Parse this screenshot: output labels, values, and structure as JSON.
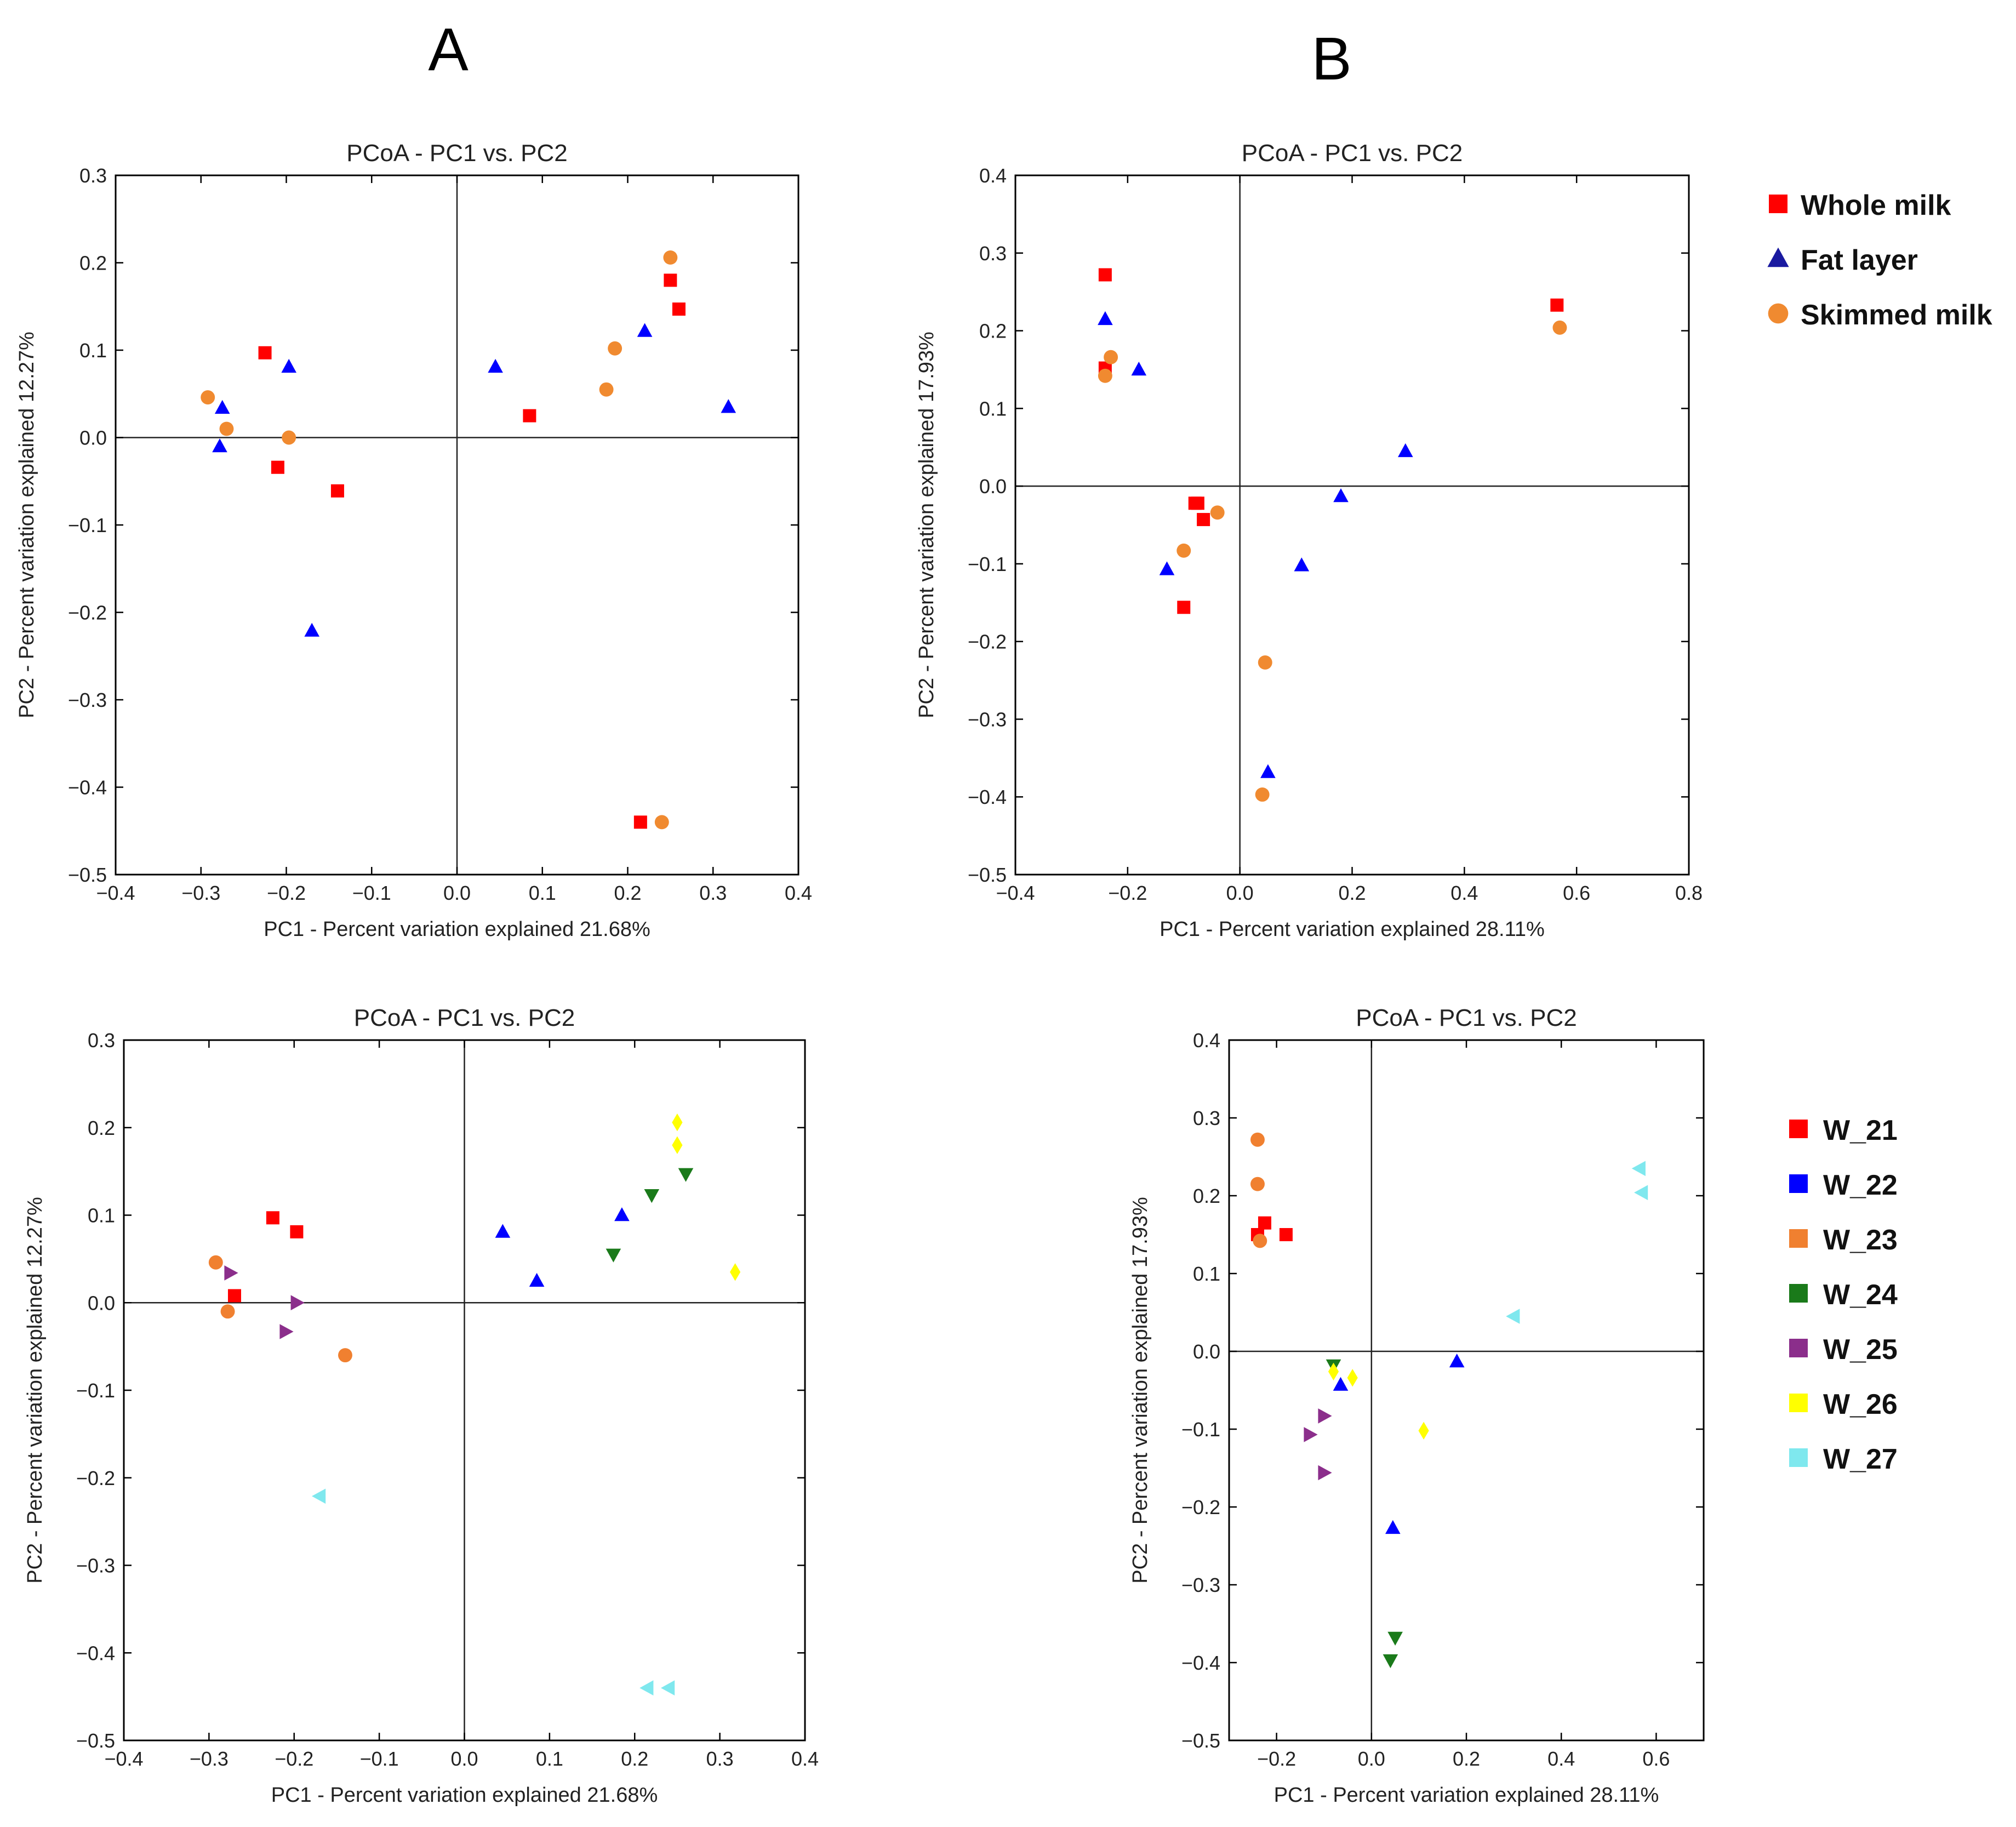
{
  "panel_labels": [
    "A",
    "B"
  ],
  "colors": {
    "whole_milk": "#ff0000",
    "fat_layer": "#0000ff",
    "skimmed_milk": "#f08a30",
    "W_21": "#ff0000",
    "W_22": "#0000ff",
    "W_23": "#f08030",
    "W_24": "#1a7a1a",
    "W_25": "#8b2e8b",
    "W_26": "#ffff00",
    "W_27": "#7fe8ee"
  },
  "legends": [
    {
      "items": [
        {
          "label": "Whole milk",
          "color": "#ff0000",
          "marker": "square"
        },
        {
          "label": "Fat layer",
          "color": "#1a1aa0",
          "marker": "triangle-up"
        },
        {
          "label": "Skimmed milk",
          "color": "#f08a30",
          "marker": "circle"
        }
      ]
    },
    {
      "items": [
        {
          "label": "W_21",
          "color": "#ff0000",
          "marker": "square"
        },
        {
          "label": "W_22",
          "color": "#0000ff",
          "marker": "square"
        },
        {
          "label": "W_23",
          "color": "#f08030",
          "marker": "square"
        },
        {
          "label": "W_24",
          "color": "#1a7a1a",
          "marker": "square"
        },
        {
          "label": "W_25",
          "color": "#8b2e8b",
          "marker": "square"
        },
        {
          "label": "W_26",
          "color": "#ffff00",
          "marker": "square"
        },
        {
          "label": "W_27",
          "color": "#7fe8ee",
          "marker": "square"
        }
      ]
    }
  ],
  "chart_data": [
    {
      "type": "scatter",
      "title": "PCoA - PC1 vs. PC2",
      "xlabel": "PC1 - Percent variation explained 21.68%",
      "ylabel": "PC2 - Percent variation explained 12.27%",
      "xlim": [
        -0.4,
        0.4
      ],
      "ylim": [
        -0.5,
        0.3
      ],
      "xticks": [
        -0.4,
        -0.3,
        -0.2,
        -0.1,
        0.0,
        0.1,
        0.2,
        0.3,
        0.4
      ],
      "yticks": [
        -0.5,
        -0.4,
        -0.3,
        -0.2,
        -0.1,
        0.0,
        0.1,
        0.2,
        0.3
      ],
      "xtick_labels": [
        "−0.4",
        "−0.3",
        "−0.2",
        "−0.1",
        "0.0",
        "0.1",
        "0.2",
        "0.3",
        "0.4"
      ],
      "ytick_labels": [
        "−0.5",
        "−0.4",
        "−0.3",
        "−0.2",
        "−0.1",
        "0.0",
        "0.1",
        "0.2",
        "0.3"
      ],
      "series": [
        {
          "name": "Whole milk",
          "color": "#ff0000",
          "marker": "square",
          "points": [
            [
              -0.225,
              0.097
            ],
            [
              -0.21,
              -0.034
            ],
            [
              -0.14,
              -0.061
            ],
            [
              0.085,
              0.025
            ],
            [
              0.25,
              0.18
            ],
            [
              0.26,
              0.147
            ],
            [
              0.215,
              -0.44
            ]
          ]
        },
        {
          "name": "Fat layer",
          "color": "#0000ff",
          "marker": "triangle-up",
          "points": [
            [
              -0.275,
              0.034
            ],
            [
              -0.278,
              -0.01
            ],
            [
              -0.197,
              0.081
            ],
            [
              -0.17,
              -0.221
            ],
            [
              0.045,
              0.081
            ],
            [
              0.22,
              0.122
            ],
            [
              0.318,
              0.035
            ]
          ]
        },
        {
          "name": "Skimmed milk",
          "color": "#f08a30",
          "marker": "circle",
          "points": [
            [
              -0.292,
              0.046
            ],
            [
              -0.27,
              0.01
            ],
            [
              -0.197,
              0.0
            ],
            [
              0.175,
              0.055
            ],
            [
              0.185,
              0.102
            ],
            [
              0.25,
              0.206
            ],
            [
              0.24,
              -0.44
            ]
          ]
        }
      ]
    },
    {
      "type": "scatter",
      "title": "PCoA - PC1 vs. PC2",
      "xlabel": "PC1 - Percent variation explained 28.11%",
      "ylabel": "PC2 - Percent variation explained 17.93%",
      "xlim": [
        -0.4,
        0.8
      ],
      "ylim": [
        -0.5,
        0.4
      ],
      "xticks": [
        -0.4,
        -0.2,
        0.0,
        0.2,
        0.4,
        0.6,
        0.8
      ],
      "yticks": [
        -0.5,
        -0.4,
        -0.3,
        -0.2,
        -0.1,
        0.0,
        0.1,
        0.2,
        0.3,
        0.4
      ],
      "xtick_labels": [
        "−0.4",
        "−0.2",
        "0.0",
        "0.2",
        "0.4",
        "0.6",
        "0.8"
      ],
      "ytick_labels": [
        "−0.5",
        "−0.4",
        "−0.3",
        "−0.2",
        "−0.1",
        "0.0",
        "0.1",
        "0.2",
        "0.3",
        "0.4"
      ],
      "series": [
        {
          "name": "Whole milk",
          "color": "#ff0000",
          "marker": "square",
          "points": [
            [
              -0.24,
              0.272
            ],
            [
              -0.24,
              0.152
            ],
            [
              -0.08,
              -0.022
            ],
            [
              -0.075,
              -0.022
            ],
            [
              -0.065,
              -0.043
            ],
            [
              -0.1,
              -0.156
            ],
            [
              0.565,
              0.233
            ]
          ]
        },
        {
          "name": "Fat layer",
          "color": "#0000ff",
          "marker": "triangle-up",
          "points": [
            [
              -0.24,
              0.215
            ],
            [
              -0.18,
              0.15
            ],
            [
              -0.13,
              -0.107
            ],
            [
              0.11,
              -0.102
            ],
            [
              0.18,
              -0.013
            ],
            [
              0.295,
              0.045
            ],
            [
              0.05,
              -0.368
            ]
          ]
        },
        {
          "name": "Skimmed milk",
          "color": "#f08a30",
          "marker": "circle",
          "points": [
            [
              -0.23,
              0.166
            ],
            [
              -0.24,
              0.142
            ],
            [
              -0.1,
              -0.083
            ],
            [
              -0.04,
              -0.034
            ],
            [
              0.045,
              -0.227
            ],
            [
              0.04,
              -0.397
            ],
            [
              0.57,
              0.204
            ]
          ]
        }
      ]
    },
    {
      "type": "scatter",
      "title": "PCoA - PC1 vs. PC2",
      "xlabel": "PC1 - Percent variation explained 21.68%",
      "ylabel": "PC2 - Percent variation explained 12.27%",
      "xlim": [
        -0.4,
        0.4
      ],
      "ylim": [
        -0.5,
        0.3
      ],
      "xticks": [
        -0.4,
        -0.3,
        -0.2,
        -0.1,
        0.0,
        0.1,
        0.2,
        0.3,
        0.4
      ],
      "yticks": [
        -0.5,
        -0.4,
        -0.3,
        -0.2,
        -0.1,
        0.0,
        0.1,
        0.2,
        0.3
      ],
      "xtick_labels": [
        "−0.4",
        "−0.3",
        "−0.2",
        "−0.1",
        "0.0",
        "0.1",
        "0.2",
        "0.3",
        "0.4"
      ],
      "ytick_labels": [
        "−0.5",
        "−0.4",
        "−0.3",
        "−0.2",
        "−0.1",
        "0.0",
        "0.1",
        "0.2",
        "0.3"
      ],
      "series": [
        {
          "name": "W_21",
          "color": "#ff0000",
          "marker": "square",
          "points": [
            [
              -0.225,
              0.097
            ],
            [
              -0.197,
              0.081
            ],
            [
              -0.27,
              0.008
            ]
          ]
        },
        {
          "name": "W_22",
          "color": "#0000ff",
          "marker": "triangle-up",
          "points": [
            [
              0.045,
              0.081
            ],
            [
              0.085,
              0.025
            ],
            [
              0.185,
              0.1
            ]
          ]
        },
        {
          "name": "W_23",
          "color": "#f08030",
          "marker": "circle",
          "points": [
            [
              -0.292,
              0.046
            ],
            [
              -0.278,
              -0.01
            ],
            [
              -0.14,
              -0.06
            ]
          ]
        },
        {
          "name": "W_24",
          "color": "#1a7a1a",
          "marker": "triangle-down",
          "points": [
            [
              0.175,
              0.055
            ],
            [
              0.22,
              0.123
            ],
            [
              0.26,
              0.147
            ]
          ]
        },
        {
          "name": "W_25",
          "color": "#8b2e8b",
          "marker": "triangle-right",
          "points": [
            [
              -0.275,
              0.034
            ],
            [
              -0.197,
              0.0
            ],
            [
              -0.21,
              -0.033
            ]
          ]
        },
        {
          "name": "W_26",
          "color": "#ffff00",
          "marker": "diamond",
          "points": [
            [
              0.25,
              0.206
            ],
            [
              0.25,
              0.18
            ],
            [
              0.318,
              0.035
            ]
          ]
        },
        {
          "name": "W_27",
          "color": "#7fe8ee",
          "marker": "triangle-left",
          "points": [
            [
              -0.17,
              -0.221
            ],
            [
              0.215,
              -0.44
            ],
            [
              0.24,
              -0.44
            ]
          ]
        }
      ]
    },
    {
      "type": "scatter",
      "title": "PCoA - PC1 vs. PC2",
      "xlabel": "PC1 - Percent variation explained 28.11%",
      "ylabel": "PC2 - Percent variation explained 17.93%",
      "xlim": [
        -0.3,
        0.7
      ],
      "ylim": [
        -0.5,
        0.4
      ],
      "xticks": [
        -0.2,
        0.0,
        0.2,
        0.4,
        0.6
      ],
      "yticks": [
        -0.5,
        -0.4,
        -0.3,
        -0.2,
        -0.1,
        0.0,
        0.1,
        0.2,
        0.3,
        0.4
      ],
      "xtick_labels": [
        "−0.2",
        "0.0",
        "0.2",
        "0.4",
        "0.6"
      ],
      "ytick_labels": [
        "−0.5",
        "−0.4",
        "−0.3",
        "−0.2",
        "−0.1",
        "0.0",
        "0.1",
        "0.2",
        "0.3",
        "0.4"
      ],
      "series": [
        {
          "name": "W_21",
          "color": "#ff0000",
          "marker": "square",
          "points": [
            [
              -0.225,
              0.165
            ],
            [
              -0.18,
              0.15
            ],
            [
              -0.24,
              0.15
            ]
          ]
        },
        {
          "name": "W_22",
          "color": "#0000ff",
          "marker": "triangle-up",
          "points": [
            [
              -0.065,
              -0.043
            ],
            [
              0.18,
              -0.013
            ],
            [
              0.045,
              -0.227
            ]
          ]
        },
        {
          "name": "W_23",
          "color": "#f08030",
          "marker": "circle",
          "points": [
            [
              -0.24,
              0.272
            ],
            [
              -0.24,
              0.215
            ],
            [
              -0.235,
              0.142
            ]
          ]
        },
        {
          "name": "W_24",
          "color": "#1a7a1a",
          "marker": "triangle-down",
          "points": [
            [
              -0.08,
              -0.018
            ],
            [
              0.05,
              -0.368
            ],
            [
              0.04,
              -0.397
            ]
          ]
        },
        {
          "name": "W_25",
          "color": "#8b2e8b",
          "marker": "triangle-right",
          "points": [
            [
              -0.13,
              -0.107
            ],
            [
              -0.1,
              -0.083
            ],
            [
              -0.1,
              -0.156
            ]
          ]
        },
        {
          "name": "W_26",
          "color": "#ffff00",
          "marker": "diamond",
          "points": [
            [
              -0.08,
              -0.026
            ],
            [
              -0.04,
              -0.034
            ],
            [
              0.11,
              -0.102
            ]
          ]
        },
        {
          "name": "W_27",
          "color": "#7fe8ee",
          "marker": "triangle-left",
          "points": [
            [
              0.565,
              0.235
            ],
            [
              0.57,
              0.204
            ],
            [
              0.3,
              0.045
            ]
          ]
        }
      ]
    }
  ]
}
